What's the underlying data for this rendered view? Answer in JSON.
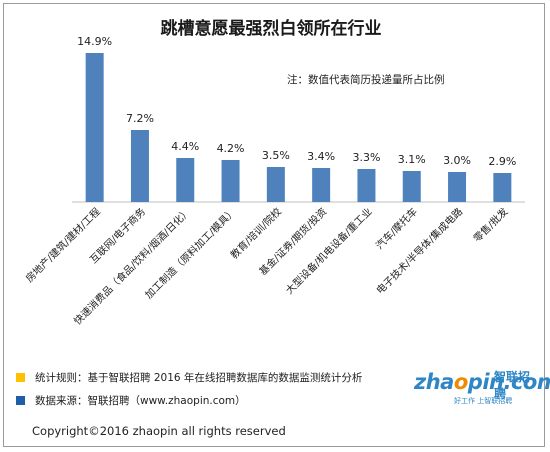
{
  "chart_data": {
    "type": "bar",
    "title": "跳槽意愿最强烈白领所在行业",
    "note": "注：数值代表简历投递量所占比例",
    "categories": [
      "房地产/建筑/建材/工程",
      "互联网/电子商务",
      "快速消费品（食品/饮料/烟酒/日化）",
      "加工制造（原料加工/模具）",
      "教育/培训/院校",
      "基金/证券/期货/投资",
      "大型设备/机电设备/重工业",
      "汽车/摩托车",
      "电子技术/半导体/集成电路",
      "零售/批发"
    ],
    "values": [
      14.9,
      7.2,
      4.4,
      4.2,
      3.5,
      3.4,
      3.3,
      3.1,
      3.0,
      2.9
    ],
    "value_labels": [
      "14.9%",
      "7.2%",
      "4.4%",
      "4.2%",
      "3.5%",
      "3.4%",
      "3.3%",
      "3.1%",
      "3.0%",
      "2.9%"
    ],
    "ylim": [
      0,
      16
    ],
    "bar_color": "#4f81bd",
    "grid": false,
    "xlabel": "",
    "ylabel": ""
  },
  "legend": {
    "rule_color": "#ffc000",
    "rule_text": "统计规则：基于智联招聘 2016 年在线招聘数据库的数据监测统计分析",
    "source_color": "#1f5fa8",
    "source_text": "数据来源：智联招聘（www.zhaopin.com）"
  },
  "footer": {
    "copyright": "Copyright©2016 zhaopin all rights reserved"
  },
  "logo": {
    "brand_prefix": "zha",
    "brand_o": "o",
    "brand_suffix": "pin.com",
    "brand_cn": "智联招聘",
    "slogan": "好工作 上智联招聘"
  }
}
